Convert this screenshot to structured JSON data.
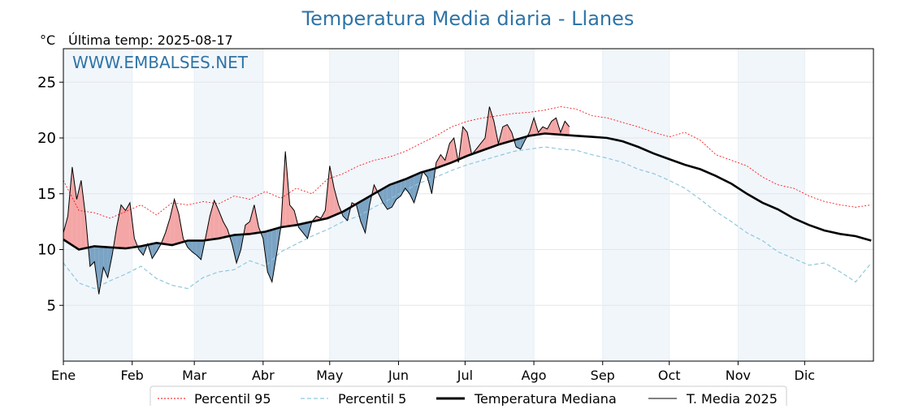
{
  "chart_data": {
    "type": "line",
    "title": "Temperatura Media diaria - Llanes",
    "unit_label": "°C",
    "subtitle": "Última temp: 2025-08-17",
    "watermark": "WWW.EMBALSES.NET",
    "ylim": [
      0,
      28
    ],
    "yticks": [
      5,
      10,
      15,
      20,
      25
    ],
    "xlim": [
      1,
      366
    ],
    "month_labels": [
      "Ene",
      "Feb",
      "Mar",
      "Abr",
      "May",
      "Jun",
      "Jul",
      "Ago",
      "Sep",
      "Oct",
      "Nov",
      "Dic"
    ],
    "month_starts": [
      1,
      32,
      60,
      91,
      121,
      152,
      182,
      213,
      244,
      274,
      305,
      335
    ],
    "grid": true,
    "legend_position": "bottom",
    "colors": {
      "p95": "#ff0000",
      "p5": "#8fc8dc",
      "median": "#000000",
      "current": "#000000",
      "above_fill": "#f4a6a6",
      "below_fill": "#7ba3c4",
      "band": "#f1f6fb",
      "title": "#2f74a6"
    },
    "series": [
      {
        "name": "Percentil 95",
        "x": [
          1,
          8,
          15,
          22,
          29,
          36,
          43,
          50,
          57,
          64,
          71,
          78,
          85,
          92,
          99,
          106,
          113,
          120,
          127,
          134,
          141,
          148,
          155,
          162,
          169,
          176,
          183,
          190,
          197,
          204,
          211,
          218,
          225,
          232,
          239,
          246,
          253,
          260,
          267,
          274,
          281,
          288,
          295,
          302,
          309,
          316,
          323,
          330,
          337,
          344,
          351,
          358,
          365
        ],
        "values": [
          16.2,
          13.5,
          13.3,
          12.8,
          13.4,
          14.0,
          13.1,
          14.2,
          14.0,
          14.3,
          14.1,
          14.8,
          14.5,
          15.2,
          14.6,
          15.5,
          15.0,
          16.3,
          16.8,
          17.5,
          18.0,
          18.3,
          18.8,
          19.5,
          20.2,
          21.0,
          21.5,
          21.8,
          22.0,
          22.2,
          22.3,
          22.5,
          22.8,
          22.6,
          22.0,
          21.8,
          21.4,
          21.0,
          20.5,
          20.1,
          20.5,
          19.8,
          18.5,
          18.0,
          17.5,
          16.5,
          15.8,
          15.5,
          14.8,
          14.3,
          14.0,
          13.8,
          14.0
        ]
      },
      {
        "name": "Percentil 5",
        "x": [
          1,
          8,
          15,
          22,
          29,
          36,
          43,
          50,
          57,
          64,
          71,
          78,
          85,
          92,
          99,
          106,
          113,
          120,
          127,
          134,
          141,
          148,
          155,
          162,
          169,
          176,
          183,
          190,
          197,
          204,
          211,
          218,
          225,
          232,
          239,
          246,
          253,
          260,
          267,
          274,
          281,
          288,
          295,
          302,
          309,
          316,
          323,
          330,
          337,
          344,
          351,
          358,
          365
        ],
        "values": [
          8.8,
          7.0,
          6.5,
          7.2,
          7.8,
          8.5,
          7.4,
          6.8,
          6.5,
          7.5,
          8.0,
          8.2,
          9.0,
          8.5,
          9.8,
          10.5,
          11.2,
          11.8,
          12.5,
          13.0,
          13.8,
          14.5,
          15.3,
          16.0,
          16.5,
          17.1,
          17.6,
          18.0,
          18.4,
          18.8,
          19.0,
          19.2,
          19.0,
          18.9,
          18.5,
          18.2,
          17.8,
          17.2,
          16.8,
          16.2,
          15.5,
          14.5,
          13.4,
          12.5,
          11.5,
          10.8,
          9.8,
          9.2,
          8.6,
          8.8,
          8.0,
          7.1,
          8.8
        ]
      },
      {
        "name": "Temperatura Mediana",
        "x": [
          1,
          8,
          15,
          22,
          29,
          36,
          43,
          50,
          57,
          64,
          71,
          78,
          85,
          92,
          99,
          106,
          113,
          120,
          127,
          134,
          141,
          148,
          155,
          162,
          169,
          176,
          183,
          190,
          197,
          204,
          211,
          218,
          225,
          232,
          239,
          246,
          253,
          260,
          267,
          274,
          281,
          288,
          295,
          302,
          309,
          316,
          323,
          330,
          337,
          344,
          351,
          358,
          365
        ],
        "values": [
          10.9,
          10.0,
          10.3,
          10.2,
          10.1,
          10.3,
          10.6,
          10.4,
          10.8,
          10.8,
          11.0,
          11.3,
          11.4,
          11.6,
          12.0,
          12.2,
          12.5,
          12.8,
          13.4,
          14.2,
          15.0,
          15.8,
          16.3,
          16.9,
          17.3,
          17.8,
          18.4,
          18.9,
          19.4,
          19.8,
          20.2,
          20.4,
          20.3,
          20.2,
          20.1,
          20.0,
          19.7,
          19.2,
          18.6,
          18.1,
          17.6,
          17.2,
          16.6,
          15.9,
          15.0,
          14.2,
          13.6,
          12.8,
          12.2,
          11.7,
          11.4,
          11.2,
          10.8
        ]
      },
      {
        "name": "T. Media 2025",
        "x": [
          1,
          3,
          5,
          7,
          9,
          11,
          13,
          15,
          17,
          19,
          21,
          23,
          25,
          27,
          29,
          31,
          33,
          35,
          37,
          39,
          41,
          43,
          45,
          47,
          49,
          51,
          53,
          55,
          57,
          59,
          61,
          63,
          65,
          67,
          69,
          71,
          73,
          75,
          77,
          79,
          81,
          83,
          85,
          87,
          89,
          91,
          93,
          95,
          97,
          99,
          101,
          103,
          105,
          107,
          109,
          111,
          113,
          115,
          117,
          119,
          121,
          123,
          125,
          127,
          129,
          131,
          133,
          135,
          137,
          139,
          141,
          143,
          145,
          147,
          149,
          151,
          153,
          155,
          157,
          159,
          161,
          163,
          165,
          167,
          169,
          171,
          173,
          175,
          177,
          179,
          181,
          183,
          185,
          187,
          189,
          191,
          193,
          195,
          197,
          199,
          201,
          203,
          205,
          207,
          209,
          211,
          213,
          215,
          217,
          219,
          221,
          223,
          225,
          227,
          229
        ],
        "values": [
          11.5,
          13.0,
          17.4,
          14.5,
          16.2,
          13.0,
          8.5,
          8.9,
          6.0,
          8.4,
          7.5,
          9.5,
          12.0,
          14.0,
          13.5,
          14.2,
          11.0,
          10.0,
          9.5,
          10.5,
          9.2,
          9.8,
          10.5,
          11.5,
          12.8,
          14.5,
          13.2,
          11.0,
          10.2,
          9.8,
          9.5,
          9.1,
          11.0,
          13.0,
          14.4,
          13.5,
          12.5,
          11.8,
          10.5,
          8.8,
          10.0,
          12.2,
          12.5,
          14.0,
          12.0,
          11.0,
          8.0,
          7.1,
          9.5,
          12.0,
          18.8,
          14.0,
          13.5,
          12.0,
          11.5,
          11.0,
          12.5,
          13.0,
          12.8,
          13.5,
          17.5,
          15.5,
          14.0,
          13.0,
          12.6,
          14.2,
          14.0,
          12.5,
          11.5,
          14.0,
          15.8,
          15.0,
          14.2,
          13.6,
          13.8,
          14.5,
          14.8,
          15.5,
          15.0,
          14.2,
          15.5,
          17.0,
          16.5,
          15.0,
          17.8,
          18.5,
          18.0,
          19.5,
          20.0,
          17.8,
          21.0,
          20.5,
          18.5,
          19.0,
          19.5,
          20.0,
          22.8,
          21.5,
          19.5,
          21.0,
          21.2,
          20.5,
          19.2,
          19.0,
          19.8,
          20.5,
          21.8,
          20.5,
          21.0,
          20.8,
          21.5,
          21.8,
          20.5,
          21.5,
          21.0
        ]
      }
    ]
  }
}
